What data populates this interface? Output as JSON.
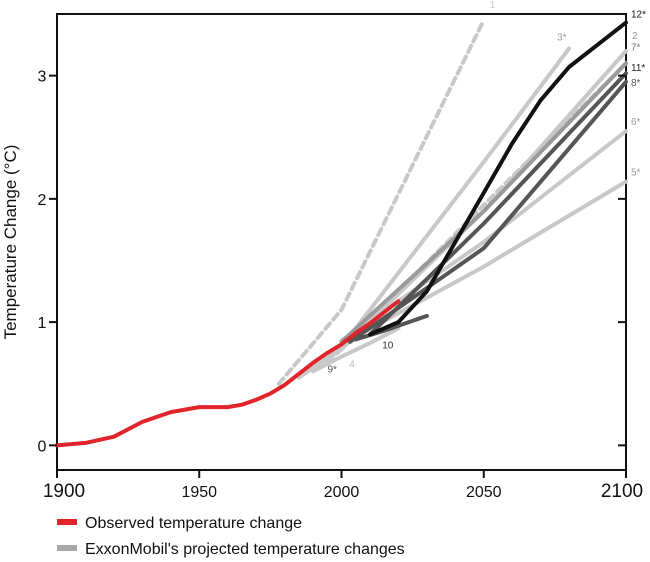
{
  "chart_data": {
    "type": "line",
    "title": "",
    "xlabel": "",
    "ylabel": "Temperature Change (°C)",
    "xlim": [
      1900,
      2100
    ],
    "ylim": [
      -0.2,
      3.5
    ],
    "x_ticks": [
      "1900",
      "1950",
      "2000",
      "2050",
      "2100"
    ],
    "y_ticks": [
      "0",
      "1",
      "2",
      "3"
    ],
    "grid": false,
    "legend_position": "bottom-left",
    "legend": {
      "observed": "Observed temperature change",
      "projected": "ExxonMobil's projected temperature changes"
    },
    "colors": {
      "observed": "#e0242b",
      "projected_light": "#c8c8c8",
      "projected_mid": "#9a9a9a",
      "projected_dark": "#555555",
      "projected_black": "#111111"
    },
    "series": [
      {
        "name": "Observed temperature change",
        "role": "observed",
        "x": [
          1900,
          1910,
          1920,
          1930,
          1940,
          1950,
          1955,
          1960,
          1965,
          1970,
          1975,
          1980,
          1985,
          1990,
          1995,
          2000,
          2005,
          2010,
          2015,
          2020
        ],
        "y": [
          0.0,
          0.02,
          0.07,
          0.19,
          0.27,
          0.31,
          0.31,
          0.31,
          0.33,
          0.37,
          0.42,
          0.49,
          0.58,
          0.67,
          0.75,
          0.82,
          0.91,
          0.99,
          1.08,
          1.17
        ]
      },
      {
        "role": "projection",
        "curve": "1",
        "style": "light-dashed",
        "x": [
          1978,
          2000,
          2050
        ],
        "y": [
          0.5,
          1.1,
          3.45
        ]
      },
      {
        "role": "projection",
        "curve": "2",
        "style": "light",
        "x": [
          1985,
          2000,
          2050,
          2100
        ],
        "y": [
          0.55,
          0.78,
          1.9,
          3.2
        ]
      },
      {
        "role": "projection",
        "curve": "3*",
        "style": "light",
        "x": [
          1990,
          2000,
          2050,
          2080
        ],
        "y": [
          0.62,
          0.8,
          2.3,
          3.22
        ]
      },
      {
        "role": "projection",
        "curve": "4",
        "style": "light-dashed",
        "x": [
          1995,
          2000,
          2050,
          2100
        ],
        "y": [
          0.68,
          0.78,
          1.95,
          3.1
        ]
      },
      {
        "role": "projection",
        "curve": "5*",
        "style": "light",
        "x": [
          2000,
          2050,
          2100
        ],
        "y": [
          0.82,
          1.45,
          2.14
        ]
      },
      {
        "role": "projection",
        "curve": "6*",
        "style": "light",
        "x": [
          2000,
          2050,
          2100
        ],
        "y": [
          0.85,
          1.65,
          2.55
        ]
      },
      {
        "role": "projection",
        "curve": "7*",
        "style": "mid",
        "x": [
          2000,
          2050,
          2100
        ],
        "y": [
          0.84,
          1.9,
          3.1
        ]
      },
      {
        "role": "projection",
        "curve": "8*",
        "style": "dark",
        "x": [
          2003,
          2050,
          2100
        ],
        "y": [
          0.84,
          1.6,
          2.95
        ]
      },
      {
        "role": "projection",
        "curve": "9*",
        "style": "light",
        "x": [
          1990,
          2000,
          2010,
          2020
        ],
        "y": [
          0.6,
          0.72,
          0.83,
          0.95
        ]
      },
      {
        "role": "projection",
        "curve": "10",
        "style": "dark",
        "x": [
          2005,
          2015,
          2030
        ],
        "y": [
          0.86,
          0.93,
          1.05
        ]
      },
      {
        "role": "projection",
        "curve": "11*",
        "style": "dark",
        "x": [
          2010,
          2050,
          2100
        ],
        "y": [
          0.9,
          1.8,
          3.02
        ]
      },
      {
        "role": "projection",
        "curve": "12*",
        "style": "black",
        "x": [
          2010,
          2020,
          2030,
          2040,
          2050,
          2060,
          2070,
          2080,
          2090,
          2100
        ],
        "y": [
          0.9,
          1.0,
          1.25,
          1.65,
          2.05,
          2.45,
          2.8,
          3.07,
          3.25,
          3.43
        ]
      }
    ]
  }
}
